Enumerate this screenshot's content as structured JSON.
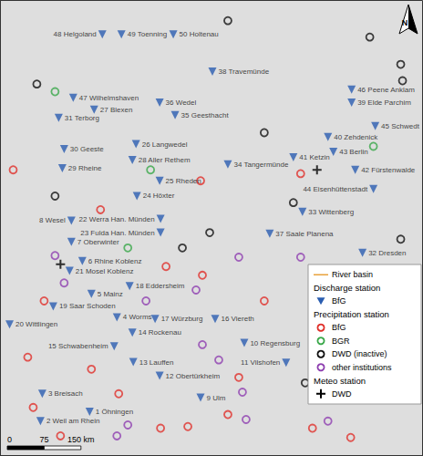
{
  "chart_data": {
    "type": "scatter",
    "xlim": [
      5.6,
      14.88
    ],
    "ylim": [
      46.87,
      55.2
    ],
    "tick_labels": false,
    "grid": false,
    "legend": "bottom-right",
    "north_arrow": "N",
    "scale_bar": [
      0,
      75,
      {
        "value": 150,
        "label": "150 km"
      }
    ],
    "series": [
      {
        "name": "River basin",
        "type": "line",
        "color": "#e8a33c",
        "line_style": "solid",
        "points": []
      },
      {
        "group": "Discharge station",
        "name": "BfG",
        "type": "scatter",
        "marker": "triangle-down",
        "color": "#2a5db0",
        "labels": [
          "48 Helgoland",
          "49 Toenning",
          "50 Holtenau",
          "38 Travemünde",
          "46 Peene Anklam",
          "39 Elde Parchim",
          "47 Wilhelmshaven",
          "27 Blexen",
          "31 Terborg",
          "36 Wedel",
          "35 Geesthacht",
          "40 Zehdenick",
          "45 Schwedt",
          "44 Eisenhüttenstadt",
          "42 Fürstenwalde",
          "43 Berlin",
          "41 Ketzin",
          "34 Tangermünde",
          "26 Langwedel",
          "28 Aller Rethem",
          "30 Geeste",
          "29 Rheine",
          "8 Wesel",
          "25 Rheden",
          "24 Höxter",
          "33 Wittenberg",
          "37 Saale Planena",
          "32 Dresden",
          "22 Werra Han. Münden",
          "23 Fulda Han. Münden",
          "7 Oberwinter",
          "6 Rhine Koblenz",
          "21 Mosel Koblenz",
          "18 Eddersheim",
          "5 Mainz",
          "19 Saar Schoden",
          "4 Worms",
          "20 Wittlingen",
          "14 Rockenau",
          "17 Würzburg",
          "16 Viereth",
          "15 Schwabenheim",
          "13 Lauffen",
          "12 Obertürkheim",
          "10 Regensburg",
          "11 Vilshofen",
          "9 Ulm",
          "3 Breisach",
          "1 Öhningen",
          "2 Weil am Rhein"
        ],
        "points": [
          [
            7.84,
            54.58
          ],
          [
            8.26,
            54.58
          ],
          [
            9.4,
            54.58
          ],
          [
            10.26,
            53.9
          ],
          [
            13.32,
            53.57
          ],
          [
            13.32,
            53.33
          ],
          [
            7.2,
            53.42
          ],
          [
            7.66,
            53.2
          ],
          [
            6.88,
            53.05
          ],
          [
            9.1,
            53.33
          ],
          [
            9.44,
            53.1
          ],
          [
            12.8,
            52.7
          ],
          [
            13.84,
            52.9
          ],
          [
            13.8,
            51.75
          ],
          [
            13.4,
            52.1
          ],
          [
            12.92,
            52.43
          ],
          [
            12.04,
            52.33
          ],
          [
            10.6,
            52.2
          ],
          [
            8.58,
            52.57
          ],
          [
            8.5,
            52.28
          ],
          [
            7.0,
            52.48
          ],
          [
            6.96,
            52.13
          ],
          [
            7.16,
            51.17
          ],
          [
            9.1,
            51.9
          ],
          [
            8.6,
            51.62
          ],
          [
            12.24,
            51.33
          ],
          [
            11.52,
            50.93
          ],
          [
            13.56,
            50.58
          ],
          [
            9.12,
            51.2
          ],
          [
            9.12,
            50.95
          ],
          [
            7.16,
            50.78
          ],
          [
            7.4,
            50.43
          ],
          [
            7.12,
            50.25
          ],
          [
            8.44,
            49.97
          ],
          [
            7.6,
            49.83
          ],
          [
            6.76,
            49.6
          ],
          [
            8.16,
            49.4
          ],
          [
            5.8,
            49.27
          ],
          [
            8.5,
            49.12
          ],
          [
            9.0,
            49.37
          ],
          [
            10.32,
            49.37
          ],
          [
            8.1,
            48.87
          ],
          [
            8.52,
            48.58
          ],
          [
            9.1,
            48.33
          ],
          [
            10.96,
            48.93
          ],
          [
            11.88,
            48.57
          ],
          [
            10.0,
            47.93
          ],
          [
            6.52,
            48.0
          ],
          [
            7.56,
            47.67
          ],
          [
            6.48,
            47.5
          ]
        ]
      },
      {
        "group": "Precipitation station",
        "name": "BfG",
        "type": "scatter",
        "marker": "circle-open",
        "color": "#e0302a",
        "points": [
          [
            5.88,
            52.1
          ],
          [
            10.0,
            51.9
          ],
          [
            12.2,
            52.03
          ],
          [
            6.56,
            49.7
          ],
          [
            9.24,
            50.33
          ],
          [
            7.6,
            48.45
          ],
          [
            6.32,
            47.75
          ],
          [
            6.92,
            47.23
          ],
          [
            9.12,
            47.37
          ],
          [
            9.72,
            47.4
          ],
          [
            10.84,
            48.3
          ],
          [
            10.6,
            47.62
          ],
          [
            12.46,
            47.37
          ],
          [
            13.3,
            47.2
          ],
          [
            10.04,
            50.17
          ],
          [
            8.2,
            48.0
          ],
          [
            11.4,
            49.7
          ],
          [
            6.2,
            48.67
          ],
          [
            7.8,
            51.37
          ]
        ]
      },
      {
        "group": "Precipitation station",
        "name": "BGR",
        "type": "scatter",
        "marker": "circle-open",
        "color": "#3aa84a",
        "points": [
          [
            6.8,
            53.53
          ],
          [
            8.9,
            52.1
          ],
          [
            8.4,
            50.67
          ],
          [
            13.8,
            52.53
          ]
        ]
      },
      {
        "group": "Precipitation station",
        "name": "DWD (inactive)",
        "type": "scatter",
        "marker": "circle-open",
        "color": "#111111",
        "points": [
          [
            10.6,
            54.83
          ],
          [
            13.72,
            54.53
          ],
          [
            14.4,
            54.03
          ],
          [
            14.44,
            53.73
          ],
          [
            6.4,
            53.67
          ],
          [
            11.4,
            52.78
          ],
          [
            10.2,
            50.95
          ],
          [
            12.04,
            51.5
          ],
          [
            14.4,
            50.83
          ],
          [
            12.3,
            48.2
          ],
          [
            9.6,
            50.67
          ],
          [
            6.8,
            51.62
          ]
        ]
      },
      {
        "group": "Precipitation station",
        "name": "other institutions",
        "type": "scatter",
        "marker": "circle-open",
        "color": "#8e3fb0",
        "points": [
          [
            6.8,
            50.53
          ],
          [
            7.0,
            50.03
          ],
          [
            8.8,
            49.7
          ],
          [
            9.9,
            49.9
          ],
          [
            10.04,
            48.9
          ],
          [
            10.84,
            50.5
          ],
          [
            12.2,
            50.5
          ],
          [
            8.16,
            47.23
          ],
          [
            8.4,
            47.43
          ],
          [
            10.92,
            48.03
          ],
          [
            11.0,
            47.53
          ],
          [
            12.8,
            47.5
          ],
          [
            10.4,
            48.62
          ]
        ]
      },
      {
        "group": "Meteo station",
        "name": "DWD",
        "type": "scatter",
        "marker": "plus",
        "color": "#000000",
        "points": [
          [
            6.92,
            50.37
          ],
          [
            12.56,
            52.1
          ]
        ]
      }
    ]
  }
}
